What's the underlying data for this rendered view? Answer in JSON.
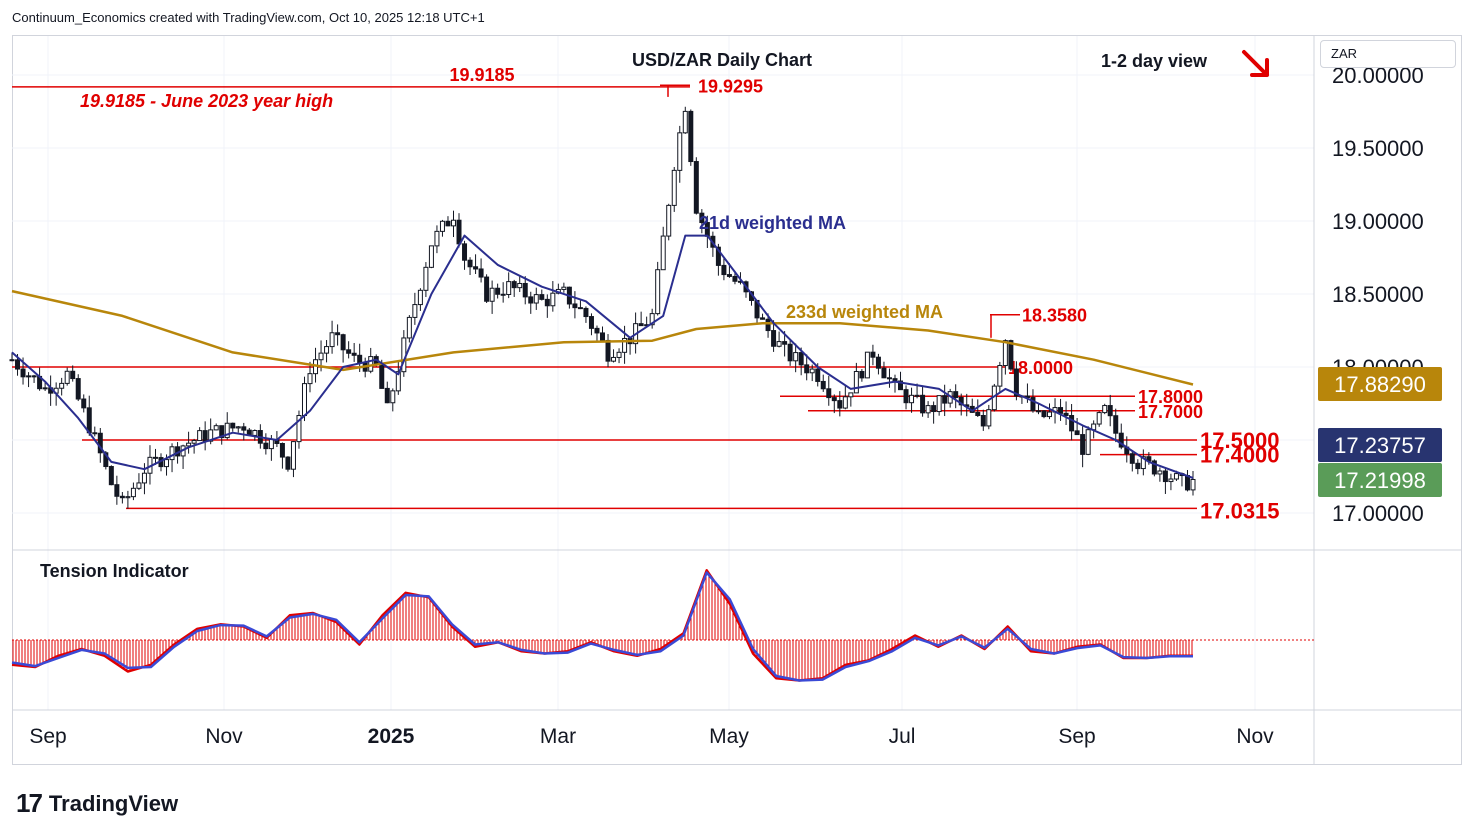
{
  "header": {
    "attribution": "Continuum_Economics created with TradingView.com, Oct 10, 2025 12:18 UTC+1"
  },
  "currency_box": "ZAR",
  "footer": {
    "brand": "TradingView",
    "mark": "17"
  },
  "colors": {
    "up_candle": "#131722",
    "down_candle": "#131722",
    "level_line": "#e00000",
    "ma21": "#2a2e8f",
    "ma233": "#b8860b",
    "tension_red": "#e00000",
    "tension_blue": "#3a4ad6",
    "axis_text": "#131722"
  },
  "chart_data": [
    {
      "type": "candlestick",
      "title": "USD/ZAR Daily Chart",
      "subtitle": "1-2 day view",
      "view_arrow": "down-right-arrow",
      "x_ticks": [
        "Sep",
        "Nov",
        "2025",
        "Mar",
        "May",
        "Jul",
        "Sep",
        "Nov"
      ],
      "y_ticks": [
        "20.00000",
        "19.50000",
        "19.00000",
        "18.50000",
        "18.00000",
        "17.00000"
      ],
      "ylim": [
        16.75,
        20.25
      ],
      "y_scale": "linear",
      "grid": true,
      "series": [
        {
          "name": "21d weighted MA",
          "label_color": "#2a2e8f"
        },
        {
          "name": "233d weighted MA",
          "label_color": "#b8860b"
        }
      ],
      "ma233_tag": "17.88290",
      "ma21_tag": "17.23757",
      "last_price_tag": "17.21998",
      "levels": [
        {
          "value": 19.9185,
          "label": "19.9185",
          "note": "19.9185 - June 2023 year high"
        },
        {
          "value": 19.9295,
          "label": "19.9295"
        },
        {
          "value": 18.358,
          "label": "18.3580"
        },
        {
          "value": 18.0,
          "label": "18.0000"
        },
        {
          "value": 17.8,
          "label": "17.8000"
        },
        {
          "value": 17.7,
          "label": "17.7000"
        },
        {
          "value": 17.5,
          "label": "17.5000"
        },
        {
          "value": 17.4,
          "label": "17.4000"
        },
        {
          "value": 17.0315,
          "label": "17.0315"
        }
      ],
      "path_points": [
        [
          0,
          18.05
        ],
        [
          6,
          17.85
        ],
        [
          10,
          17.95
        ],
        [
          14,
          17.6
        ],
        [
          18,
          17.2
        ],
        [
          20,
          17.05
        ],
        [
          24,
          17.3
        ],
        [
          30,
          17.45
        ],
        [
          36,
          17.55
        ],
        [
          42,
          17.6
        ],
        [
          48,
          17.45
        ],
        [
          50,
          17.35
        ],
        [
          54,
          18.0
        ],
        [
          58,
          18.2
        ],
        [
          62,
          18.05
        ],
        [
          66,
          18.0
        ],
        [
          68,
          17.7
        ],
        [
          72,
          18.3
        ],
        [
          76,
          18.85
        ],
        [
          80,
          19.05
        ],
        [
          82,
          18.75
        ],
        [
          86,
          18.5
        ],
        [
          90,
          18.55
        ],
        [
          96,
          18.45
        ],
        [
          100,
          18.5
        ],
        [
          104,
          18.35
        ],
        [
          108,
          18.1
        ],
        [
          112,
          18.2
        ],
        [
          116,
          18.35
        ],
        [
          120,
          19.4
        ],
        [
          122,
          19.8
        ],
        [
          124,
          19.1
        ],
        [
          128,
          18.7
        ],
        [
          132,
          18.55
        ],
        [
          136,
          18.3
        ],
        [
          140,
          18.1
        ],
        [
          146,
          17.95
        ],
        [
          150,
          17.75
        ],
        [
          156,
          18.1
        ],
        [
          160,
          17.85
        ],
        [
          166,
          17.7
        ],
        [
          170,
          17.8
        ],
        [
          176,
          17.6
        ],
        [
          180,
          18.2
        ],
        [
          182,
          17.85
        ],
        [
          186,
          17.65
        ],
        [
          190,
          17.7
        ],
        [
          194,
          17.45
        ],
        [
          198,
          17.7
        ],
        [
          200,
          17.55
        ],
        [
          204,
          17.35
        ],
        [
          208,
          17.3
        ],
        [
          212,
          17.2
        ],
        [
          214,
          17.22
        ]
      ],
      "ma21_points": [
        [
          0,
          18.1
        ],
        [
          6,
          17.9
        ],
        [
          12,
          17.65
        ],
        [
          18,
          17.35
        ],
        [
          24,
          17.3
        ],
        [
          32,
          17.45
        ],
        [
          40,
          17.55
        ],
        [
          48,
          17.5
        ],
        [
          54,
          17.7
        ],
        [
          60,
          18.0
        ],
        [
          66,
          18.05
        ],
        [
          70,
          17.95
        ],
        [
          76,
          18.5
        ],
        [
          82,
          18.9
        ],
        [
          88,
          18.7
        ],
        [
          96,
          18.55
        ],
        [
          104,
          18.45
        ],
        [
          112,
          18.2
        ],
        [
          118,
          18.35
        ],
        [
          122,
          18.9
        ],
        [
          126,
          18.9
        ],
        [
          132,
          18.6
        ],
        [
          138,
          18.3
        ],
        [
          146,
          18.0
        ],
        [
          152,
          17.85
        ],
        [
          160,
          17.9
        ],
        [
          168,
          17.85
        ],
        [
          174,
          17.7
        ],
        [
          180,
          17.85
        ],
        [
          186,
          17.75
        ],
        [
          194,
          17.6
        ],
        [
          200,
          17.5
        ],
        [
          206,
          17.35
        ],
        [
          214,
          17.24
        ]
      ],
      "ma233_points": [
        [
          0,
          18.52
        ],
        [
          20,
          18.35
        ],
        [
          40,
          18.1
        ],
        [
          60,
          17.98
        ],
        [
          80,
          18.1
        ],
        [
          100,
          18.17
        ],
        [
          116,
          18.18
        ],
        [
          124,
          18.26
        ],
        [
          136,
          18.3
        ],
        [
          150,
          18.3
        ],
        [
          166,
          18.25
        ],
        [
          180,
          18.17
        ],
        [
          196,
          18.05
        ],
        [
          214,
          17.88
        ]
      ],
      "x_domain": [
        0,
        214
      ]
    },
    {
      "type": "area",
      "title": "Tension Indicator",
      "baseline": 0,
      "values": [
        -0.55,
        -0.6,
        -0.35,
        -0.2,
        -0.35,
        -0.7,
        -0.55,
        -0.1,
        0.25,
        0.35,
        0.3,
        0.05,
        0.55,
        0.6,
        0.4,
        -0.1,
        0.55,
        1.05,
        0.95,
        0.3,
        -0.15,
        -0.05,
        -0.25,
        -0.3,
        -0.25,
        -0.05,
        -0.25,
        -0.35,
        -0.2,
        0.15,
        1.55,
        0.8,
        -0.3,
        -0.85,
        -0.9,
        -0.85,
        -0.55,
        -0.45,
        -0.2,
        0.1,
        -0.15,
        0.1,
        -0.2,
        0.3,
        -0.25,
        -0.3,
        -0.15,
        -0.1,
        -0.4,
        -0.4,
        -0.35,
        -0.35
      ],
      "signal": [
        -0.5,
        -0.58,
        -0.4,
        -0.22,
        -0.3,
        -0.62,
        -0.6,
        -0.15,
        0.2,
        0.33,
        0.32,
        0.08,
        0.5,
        0.58,
        0.45,
        -0.05,
        0.48,
        1.0,
        0.97,
        0.35,
        -0.1,
        -0.05,
        -0.22,
        -0.3,
        -0.28,
        -0.08,
        -0.22,
        -0.33,
        -0.25,
        0.1,
        1.5,
        0.9,
        -0.2,
        -0.8,
        -0.9,
        -0.88,
        -0.6,
        -0.47,
        -0.25,
        0.05,
        -0.12,
        0.08,
        -0.17,
        0.25,
        -0.2,
        -0.3,
        -0.18,
        -0.12,
        -0.38,
        -0.4,
        -0.36,
        -0.36
      ]
    }
  ]
}
